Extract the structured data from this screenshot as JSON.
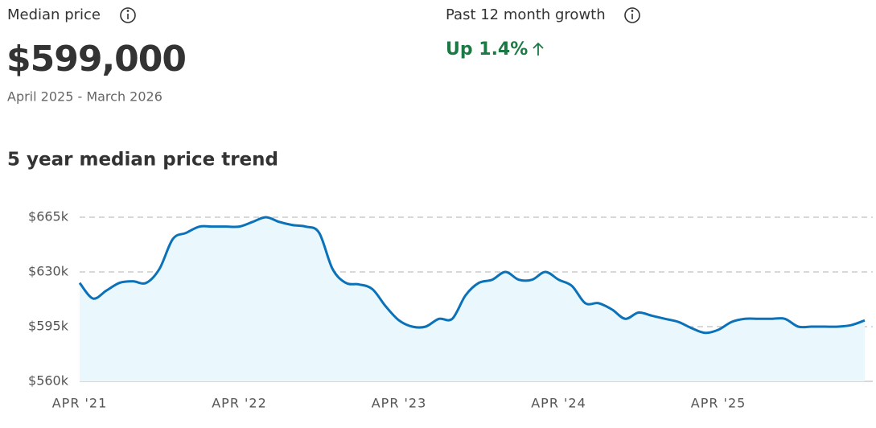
{
  "median_price": {
    "label": "Median price",
    "value": "$599,000",
    "period": "April 2025 - March 2026"
  },
  "growth": {
    "label": "Past 12 month growth",
    "value": "Up 1.4%"
  },
  "chart_data": {
    "type": "line",
    "title": "5 year median price trend",
    "categories": [
      "APR '21",
      null,
      null,
      null,
      null,
      null,
      null,
      null,
      null,
      null,
      null,
      null,
      "APR '22",
      null,
      null,
      null,
      null,
      null,
      null,
      null,
      null,
      null,
      null,
      null,
      "APR '23",
      null,
      null,
      null,
      null,
      null,
      null,
      null,
      null,
      null,
      null,
      null,
      "APR '24",
      null,
      null,
      null,
      null,
      null,
      null,
      null,
      null,
      null,
      null,
      null,
      "APR '25",
      null,
      null,
      null,
      null,
      null,
      null,
      null,
      null,
      null,
      null,
      null
    ],
    "series": [
      {
        "color": "#0b72b9",
        "fill": "#eaf7fc",
        "values": [
          623000,
          613000,
          618000,
          623000,
          624000,
          623000,
          632000,
          651000,
          655000,
          659000,
          659000,
          659000,
          659000,
          662000,
          665000,
          662000,
          660000,
          659000,
          655000,
          632000,
          623000,
          622000,
          619000,
          608000,
          599000,
          595000,
          595000,
          600000,
          600000,
          615000,
          623000,
          625000,
          630000,
          625000,
          625000,
          630000,
          625000,
          621000,
          610000,
          610000,
          606000,
          600000,
          604000,
          602000,
          600000,
          598000,
          594000,
          591000,
          593000,
          598000,
          600000,
          600000,
          600000,
          600000,
          595000,
          595000,
          595000,
          595000,
          596000,
          599000
        ]
      }
    ],
    "ylim": [
      560000,
      665000
    ],
    "yticks": [
      {
        "value": 560000,
        "label": "$560k"
      },
      {
        "value": 595000,
        "label": "$595k"
      },
      {
        "value": 630000,
        "label": "$630k"
      },
      {
        "value": 665000,
        "label": "$665k"
      }
    ],
    "grid": true
  }
}
